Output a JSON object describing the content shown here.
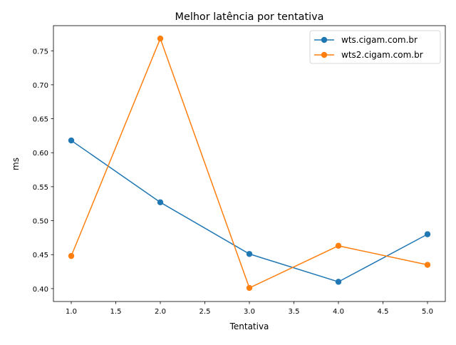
{
  "chart_data": {
    "type": "line",
    "title": "Melhor latência por tentativa",
    "xlabel": "Tentativa",
    "ylabel": "ms",
    "xlim": [
      0.8,
      5.2
    ],
    "ylim": [
      0.381,
      0.787
    ],
    "xticks": [
      "1.0",
      "1.5",
      "2.0",
      "2.5",
      "3.0",
      "3.5",
      "4.0",
      "4.5",
      "5.0"
    ],
    "yticks": [
      "0.40",
      "0.45",
      "0.50",
      "0.55",
      "0.60",
      "0.65",
      "0.70",
      "0.75"
    ],
    "grid": false,
    "legend_position": "top-right",
    "x": [
      1,
      2,
      3,
      4,
      5
    ],
    "series": [
      {
        "name": "wts.cigam.com.br",
        "color": "#1f77b4",
        "values": [
          0.618,
          0.527,
          0.451,
          0.41,
          0.48
        ]
      },
      {
        "name": "wts2.cigam.com.br",
        "color": "#ff7f0e",
        "values": [
          0.448,
          0.768,
          0.401,
          0.463,
          0.435
        ]
      }
    ]
  }
}
